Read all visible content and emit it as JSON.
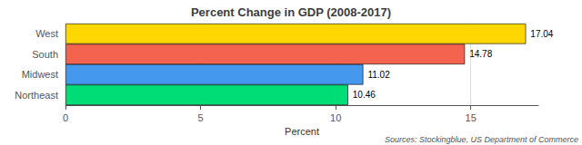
{
  "chart_data": {
    "type": "bar",
    "orientation": "horizontal",
    "title": "Percent Change in GDP (2008-2017)",
    "xlabel": "Percent",
    "categories": [
      "West",
      "South",
      "Midwest",
      "Northeast"
    ],
    "values": [
      17.04,
      14.78,
      11.02,
      10.46
    ],
    "colors": [
      "#FFD700",
      "#F4634E",
      "#4499EE",
      "#00DD77"
    ],
    "xlim": [
      0,
      17.5
    ],
    "xticks": [
      0,
      5,
      10,
      15
    ],
    "grid": true,
    "data_labels": true,
    "annotation": "Sources: Stockingblue, US Department of Commerce"
  }
}
